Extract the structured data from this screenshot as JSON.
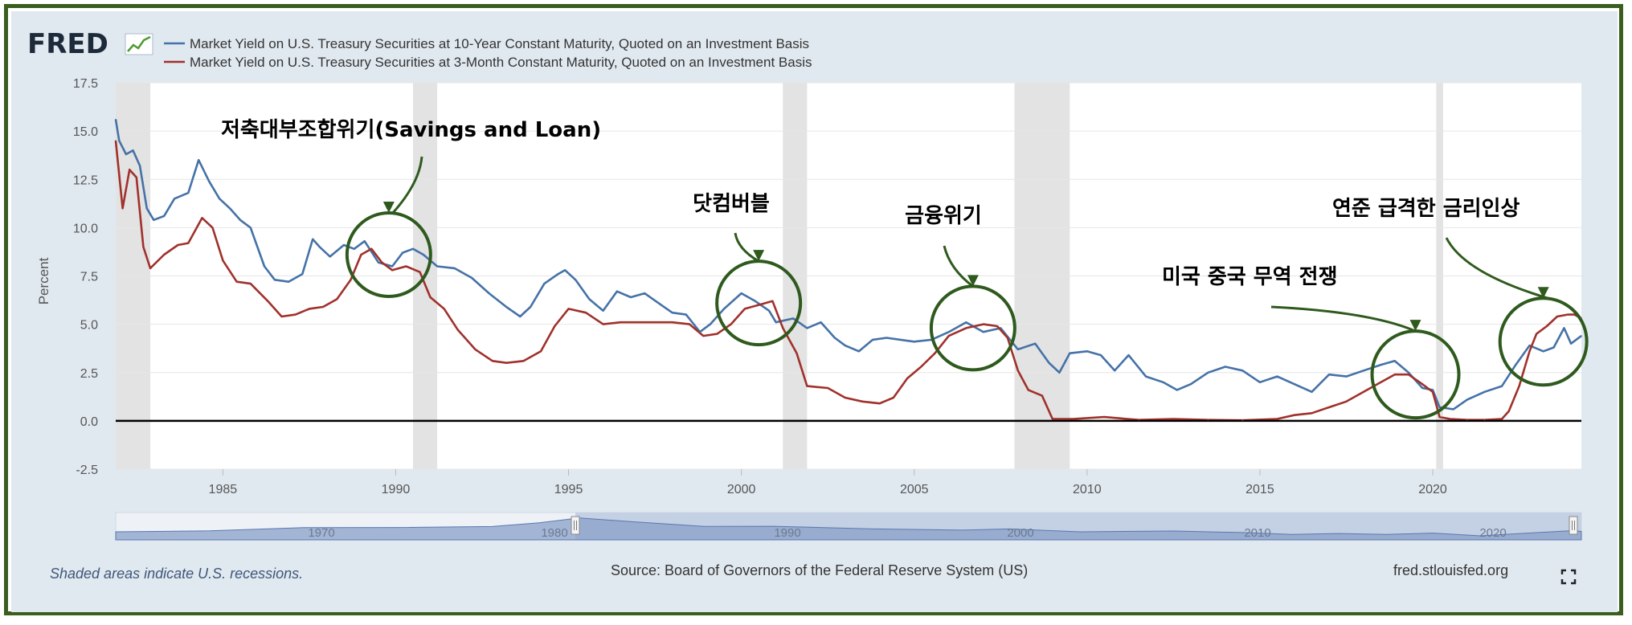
{
  "header": {
    "logo_text": "FRED",
    "logo_icon": "sparkline-chart-icon"
  },
  "chart_data": {
    "type": "line",
    "ylabel": "Percent",
    "xlabel": "",
    "x_range": [
      1981.9,
      2024.3
    ],
    "ylim": [
      -2.5,
      17.5
    ],
    "y_ticks": [
      "17.5",
      "15.0",
      "12.5",
      "10.0",
      "7.5",
      "5.0",
      "2.5",
      "0.0",
      "-2.5"
    ],
    "x_ticks": [
      "1985",
      "1990",
      "1995",
      "2000",
      "2005",
      "2010",
      "2015",
      "2020"
    ],
    "grid": true,
    "legend_position": "top-left",
    "zero_line": true,
    "recessions": [
      [
        1981.9,
        1982.9
      ],
      [
        1990.5,
        1991.2
      ],
      [
        2001.2,
        2001.9
      ],
      [
        2007.9,
        2009.5
      ],
      [
        2020.1,
        2020.3
      ]
    ],
    "series": [
      {
        "name": "Market Yield on U.S. Treasury Securities at 10-Year Constant Maturity, Quoted on an Investment Basis",
        "color": "#4572a7",
        "x": [
          1981.9,
          1982.0,
          1982.2,
          1982.4,
          1982.6,
          1982.8,
          1983.0,
          1983.3,
          1983.6,
          1984.0,
          1984.3,
          1984.6,
          1984.9,
          1985.2,
          1985.5,
          1985.8,
          1986.2,
          1986.5,
          1986.9,
          1987.3,
          1987.6,
          1987.8,
          1988.1,
          1988.5,
          1988.8,
          1989.1,
          1989.5,
          1989.9,
          1990.2,
          1990.5,
          1990.8,
          1991.2,
          1991.7,
          1992.2,
          1992.7,
          1993.2,
          1993.6,
          1993.9,
          1994.3,
          1994.7,
          1994.9,
          1995.2,
          1995.6,
          1996.0,
          1996.4,
          1996.8,
          1997.2,
          1997.6,
          1998.0,
          1998.4,
          1998.8,
          1999.1,
          1999.5,
          2000.0,
          2000.4,
          2000.8,
          2001.0,
          2001.5,
          2001.9,
          2002.3,
          2002.7,
          2003.0,
          2003.4,
          2003.8,
          2004.2,
          2004.6,
          2005.0,
          2005.5,
          2006.0,
          2006.5,
          2007.0,
          2007.5,
          2008.0,
          2008.5,
          2008.9,
          2009.2,
          2009.5,
          2010.0,
          2010.4,
          2010.8,
          2011.2,
          2011.7,
          2012.2,
          2012.6,
          2013.0,
          2013.5,
          2014.0,
          2014.5,
          2015.0,
          2015.5,
          2016.0,
          2016.5,
          2017.0,
          2017.5,
          2018.0,
          2018.5,
          2018.9,
          2019.3,
          2019.7,
          2020.0,
          2020.2,
          2020.6,
          2021.0,
          2021.5,
          2022.0,
          2022.4,
          2022.8,
          2023.2,
          2023.5,
          2023.8,
          2024.0,
          2024.3
        ],
        "y": [
          15.6,
          14.5,
          13.8,
          14.0,
          13.2,
          11.0,
          10.4,
          10.6,
          11.5,
          11.8,
          13.5,
          12.4,
          11.5,
          11.0,
          10.4,
          10.0,
          8.0,
          7.3,
          7.2,
          7.6,
          9.4,
          9.0,
          8.5,
          9.1,
          8.9,
          9.3,
          8.2,
          8.0,
          8.7,
          8.9,
          8.6,
          8.0,
          7.9,
          7.4,
          6.6,
          5.9,
          5.4,
          5.9,
          7.1,
          7.6,
          7.8,
          7.3,
          6.3,
          5.7,
          6.7,
          6.4,
          6.6,
          6.1,
          5.6,
          5.5,
          4.6,
          5.0,
          5.8,
          6.6,
          6.2,
          5.7,
          5.1,
          5.3,
          4.8,
          5.1,
          4.3,
          3.9,
          3.6,
          4.2,
          4.3,
          4.2,
          4.1,
          4.2,
          4.6,
          5.1,
          4.6,
          4.8,
          3.7,
          4.0,
          3.0,
          2.5,
          3.5,
          3.6,
          3.4,
          2.6,
          3.4,
          2.3,
          2.0,
          1.6,
          1.9,
          2.5,
          2.8,
          2.6,
          2.0,
          2.3,
          1.9,
          1.5,
          2.4,
          2.3,
          2.6,
          2.9,
          3.1,
          2.5,
          1.7,
          1.6,
          0.7,
          0.6,
          1.1,
          1.5,
          1.8,
          2.9,
          3.9,
          3.6,
          3.8,
          4.8,
          4.0,
          4.4
        ]
      },
      {
        "name": "Market Yield on U.S. Treasury Securities at 3-Month Constant Maturity, Quoted on an Investment Basis",
        "color": "#a0312b",
        "x": [
          1981.9,
          1982.1,
          1982.3,
          1982.5,
          1982.7,
          1982.9,
          1983.3,
          1983.7,
          1984.0,
          1984.4,
          1984.7,
          1985.0,
          1985.4,
          1985.8,
          1986.3,
          1986.7,
          1987.1,
          1987.5,
          1987.9,
          1988.3,
          1988.7,
          1989.0,
          1989.3,
          1989.6,
          1989.9,
          1990.3,
          1990.7,
          1991.0,
          1991.4,
          1991.8,
          1992.3,
          1992.8,
          1993.2,
          1993.7,
          1994.2,
          1994.6,
          1995.0,
          1995.5,
          1996.0,
          1996.5,
          1997.0,
          1997.5,
          1998.0,
          1998.5,
          1998.9,
          1999.3,
          1999.7,
          2000.1,
          2000.5,
          2000.9,
          2001.2,
          2001.6,
          2001.9,
          2002.5,
          2003.0,
          2003.5,
          2004.0,
          2004.4,
          2004.8,
          2005.2,
          2005.6,
          2006.0,
          2006.5,
          2007.0,
          2007.4,
          2007.7,
          2008.0,
          2008.3,
          2008.7,
          2009.0,
          2009.6,
          2010.5,
          2011.5,
          2012.5,
          2013.5,
          2014.5,
          2015.5,
          2016.0,
          2016.5,
          2017.0,
          2017.5,
          2018.0,
          2018.5,
          2018.9,
          2019.3,
          2019.7,
          2020.0,
          2020.2,
          2020.5,
          2021.0,
          2021.5,
          2022.0,
          2022.2,
          2022.5,
          2022.8,
          2023.0,
          2023.3,
          2023.6,
          2023.9,
          2024.1,
          2024.3
        ],
        "y": [
          14.5,
          11.0,
          13.0,
          12.6,
          9.0,
          7.9,
          8.6,
          9.1,
          9.2,
          10.5,
          10.0,
          8.3,
          7.2,
          7.1,
          6.2,
          5.4,
          5.5,
          5.8,
          5.9,
          6.3,
          7.3,
          8.6,
          8.9,
          8.2,
          7.8,
          8.0,
          7.7,
          6.4,
          5.8,
          4.7,
          3.7,
          3.1,
          3.0,
          3.1,
          3.6,
          4.9,
          5.8,
          5.6,
          5.0,
          5.1,
          5.1,
          5.1,
          5.1,
          5.0,
          4.4,
          4.5,
          5.0,
          5.8,
          6.0,
          6.2,
          4.8,
          3.5,
          1.8,
          1.7,
          1.2,
          1.0,
          0.9,
          1.2,
          2.2,
          2.8,
          3.5,
          4.4,
          4.8,
          5.0,
          4.9,
          4.3,
          2.6,
          1.6,
          1.3,
          0.1,
          0.1,
          0.2,
          0.05,
          0.1,
          0.05,
          0.03,
          0.1,
          0.3,
          0.4,
          0.7,
          1.0,
          1.5,
          2.0,
          2.4,
          2.4,
          1.9,
          1.5,
          0.2,
          0.1,
          0.05,
          0.05,
          0.1,
          0.5,
          1.8,
          3.6,
          4.5,
          4.9,
          5.4,
          5.5,
          5.5,
          5.3
        ]
      }
    ],
    "annotations": [
      {
        "text": "저축대부조합위기(Savings and Loan)",
        "x": 1989.8,
        "y": 8.6
      },
      {
        "text": "닷컴버블",
        "x": 2000.5,
        "y": 6.1
      },
      {
        "text": "금융위기",
        "x": 2006.7,
        "y": 4.8
      },
      {
        "text": "미국 중국 무역 전쟁",
        "x": 2019.5,
        "y": 2.4
      },
      {
        "text": "연준 급격한 금리인상",
        "x": 2023.2,
        "y": 4.1
      }
    ]
  },
  "navigator": {
    "year_labels": [
      "1970",
      "1980",
      "1990",
      "2000",
      "2010",
      "2020"
    ]
  },
  "footer": {
    "recession_note": "Shaded areas indicate U.S. recessions.",
    "source": "Source: Board of Governors of the Federal Reserve System (US)",
    "site": "fred.stlouisfed.org",
    "expand_icon": "expand-icon"
  }
}
